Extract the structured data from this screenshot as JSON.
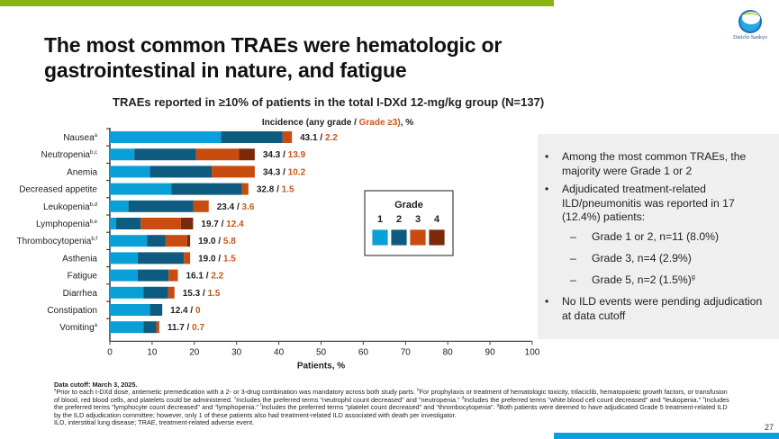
{
  "slide": {
    "title": "The most common TRAEs were hematologic or gastrointestinal in nature, and fatigue",
    "logo_text": "Daiichi-Sankyo",
    "page_number": "27"
  },
  "colors": {
    "top_bar": "#8ab50e",
    "bottom_bar": "#0aa0e0",
    "grade1": "#0b9fd8",
    "grade2": "#0d5b7f",
    "grade3": "#c84b0f",
    "grade4": "#7a2a08",
    "grade3_text": "#c8561a"
  },
  "chart_data": {
    "type": "bar",
    "orientation": "horizontal-stacked",
    "title": "TRAEs reported in ≥10% of patients in the total I-DXd 12-mg/kg group (N=137)",
    "subtitle_prefix": "Incidence (any grade / ",
    "subtitle_grade3": "Grade ≥3)",
    "subtitle_suffix": ", %",
    "xlabel": "Patients, %",
    "xlim": [
      0,
      100
    ],
    "xticks": [
      "0",
      "10",
      "20",
      "30",
      "40",
      "50",
      "60",
      "70",
      "80",
      "90",
      "100"
    ],
    "legend": {
      "title": "Grade",
      "entries": [
        "1",
        "2",
        "3",
        "4"
      ],
      "placement": "center"
    },
    "series_names": [
      "Grade 1",
      "Grade 2",
      "Grade 3",
      "Grade 4"
    ],
    "categories": [
      {
        "label": "Nausea",
        "sup": "a",
        "g1": 26.3,
        "g2": 14.6,
        "g3": 2.2,
        "g4": 0,
        "any": "43.1",
        "ge3": "2.2"
      },
      {
        "label": "Neutropenia",
        "sup": "b,c",
        "g1": 5.8,
        "g2": 14.6,
        "g3": 10.2,
        "g4": 3.7,
        "any": "34.3",
        "ge3": "13.9"
      },
      {
        "label": "Anemia",
        "sup": "",
        "g1": 9.5,
        "g2": 14.6,
        "g3": 10.2,
        "g4": 0,
        "any": "34.3",
        "ge3": "10.2"
      },
      {
        "label": "Decreased appetite",
        "sup": "",
        "g1": 14.6,
        "g2": 16.7,
        "g3": 1.5,
        "g4": 0,
        "any": "32.8",
        "ge3": "1.5"
      },
      {
        "label": "Leukopenia",
        "sup": "b,d",
        "g1": 4.4,
        "g2": 15.4,
        "g3": 3.6,
        "g4": 0,
        "any": "23.4",
        "ge3": "3.6"
      },
      {
        "label": "Lymphopenia",
        "sup": "b,e",
        "g1": 1.5,
        "g2": 5.8,
        "g3": 9.5,
        "g4": 2.9,
        "any": "19.7",
        "ge3": "12.4"
      },
      {
        "label": "Thrombocytopenia",
        "sup": "b,f",
        "g1": 8.8,
        "g2": 4.4,
        "g3": 5.1,
        "g4": 0.7,
        "any": "19.0",
        "ge3": "5.8"
      },
      {
        "label": "Asthenia",
        "sup": "",
        "g1": 6.6,
        "g2": 10.9,
        "g3": 1.5,
        "g4": 0,
        "any": "19.0",
        "ge3": "1.5"
      },
      {
        "label": "Fatigue",
        "sup": "",
        "g1": 6.6,
        "g2": 7.3,
        "g3": 2.2,
        "g4": 0,
        "any": "16.1",
        "ge3": "2.2"
      },
      {
        "label": "Diarrhea",
        "sup": "",
        "g1": 8.0,
        "g2": 5.8,
        "g3": 1.5,
        "g4": 0,
        "any": "15.3",
        "ge3": "1.5"
      },
      {
        "label": "Constipation",
        "sup": "",
        "g1": 9.5,
        "g2": 2.9,
        "g3": 0,
        "g4": 0,
        "any": "12.4",
        "ge3": "0"
      },
      {
        "label": "Vomiting",
        "sup": "a",
        "g1": 8.0,
        "g2": 3.0,
        "g3": 0.7,
        "g4": 0,
        "any": "11.7",
        "ge3": "0.7"
      }
    ]
  },
  "side_panel": {
    "bullets": [
      {
        "type": "bullet",
        "text": "Among the most common TRAEs, the majority were Grade 1 or 2"
      },
      {
        "type": "bullet",
        "text": "Adjudicated treatment-related ILD/pneumonitis was reported in 17 (12.4%) patients:"
      },
      {
        "type": "dash",
        "text": "Grade 1 or 2, n=11 (8.0%)"
      },
      {
        "type": "dash",
        "text": "Grade 3, n=4 (2.9%)"
      },
      {
        "type": "dash",
        "text": "Grade 5, n=2 (1.5%)",
        "sup": "g"
      },
      {
        "type": "bullet",
        "text": "No ILD events were pending adjudication at data cutoff"
      }
    ],
    "bullet_mark": "•",
    "dash_mark": "–"
  },
  "footnotes": {
    "cutoff": "Data cutoff: March 3, 2025.",
    "notes": [
      {
        "sup": "a",
        "text": "Prior to each I-DXd dose, antiemetic premedication with a 2- or 3-drug combination was mandatory across both study parts. "
      },
      {
        "sup": "b",
        "text": "For prophylaxis or treatment of hematologic toxicity, trilaciclib, hematopoietic growth factors, or transfusion of blood, red blood cells, and platelets could be administered. "
      },
      {
        "sup": "c",
        "text": "Includes the preferred terms \"neutrophil count decreased\" and \"neutropenia.\" "
      },
      {
        "sup": "d",
        "text": "Includes the preferred terms \"white blood cell count decreased\" and \"leukopenia.\" "
      },
      {
        "sup": "e",
        "text": "Includes the preferred terms \"lymphocyte count decreased\" and \"lymphopenia.\" "
      },
      {
        "sup": "f",
        "text": "Includes the preferred terms \"platelet count decreased\" and \"thrombocytopenia\". "
      },
      {
        "sup": "g",
        "text": "Both patients were deemed to have adjudicated Grade 5 treatment-related ILD by the ILD adjudication committee; however, only 1 of these patients also had treatment-related ILD associated with death per investigator."
      }
    ],
    "abbreviations": "ILD, interstitial lung disease; TRAE, treatment-related adverse event."
  }
}
